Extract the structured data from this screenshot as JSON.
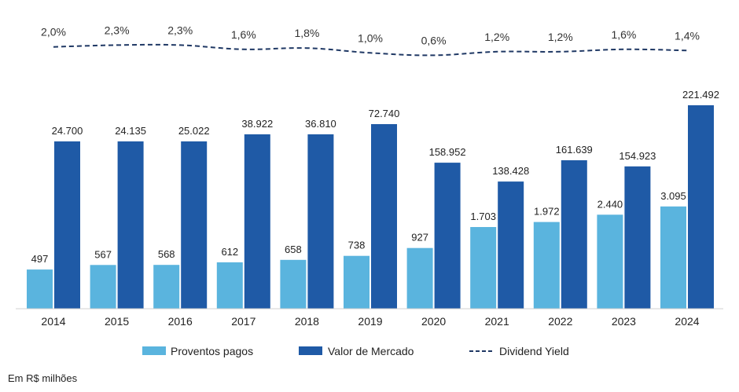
{
  "chart_data": {
    "type": "bar",
    "categories": [
      "2014",
      "2015",
      "2016",
      "2017",
      "2018",
      "2019",
      "2020",
      "2021",
      "2022",
      "2023",
      "2024"
    ],
    "series": [
      {
        "name": "Proventos pagos",
        "values": [
          497,
          567,
          568,
          612,
          658,
          738,
          927,
          1703,
          1972,
          2440,
          3095
        ],
        "labels": [
          "497",
          "567",
          "568",
          "612",
          "658",
          "738",
          "927",
          "1.703",
          "1.972",
          "2.440",
          "3.095"
        ],
        "color": "#5ab4de"
      },
      {
        "name": "Valor de Mercado",
        "values": [
          24700,
          24135,
          25022,
          38922,
          36810,
          72740,
          158952,
          138428,
          161639,
          154923,
          221492
        ],
        "labels": [
          "24.700",
          "24.135",
          "25.022",
          "38.922",
          "36.810",
          "72.740",
          "158.952",
          "138.428",
          "161.639",
          "154.923",
          "221.492"
        ],
        "color": "#1f5aa6"
      },
      {
        "name": "Dividend Yield",
        "type": "line",
        "style": "dashed",
        "values": [
          2.0,
          2.3,
          2.3,
          1.6,
          1.8,
          1.0,
          0.6,
          1.2,
          1.2,
          1.6,
          1.4
        ],
        "labels": [
          "2,0%",
          "2,3%",
          "2,3%",
          "1,6%",
          "1,8%",
          "1,0%",
          "0,6%",
          "1,2%",
          "1,2%",
          "1,6%",
          "1,4%"
        ],
        "color": "#1f3864"
      }
    ],
    "legend_position": "bottom",
    "grid": false,
    "note": "Em R$ milhões"
  }
}
